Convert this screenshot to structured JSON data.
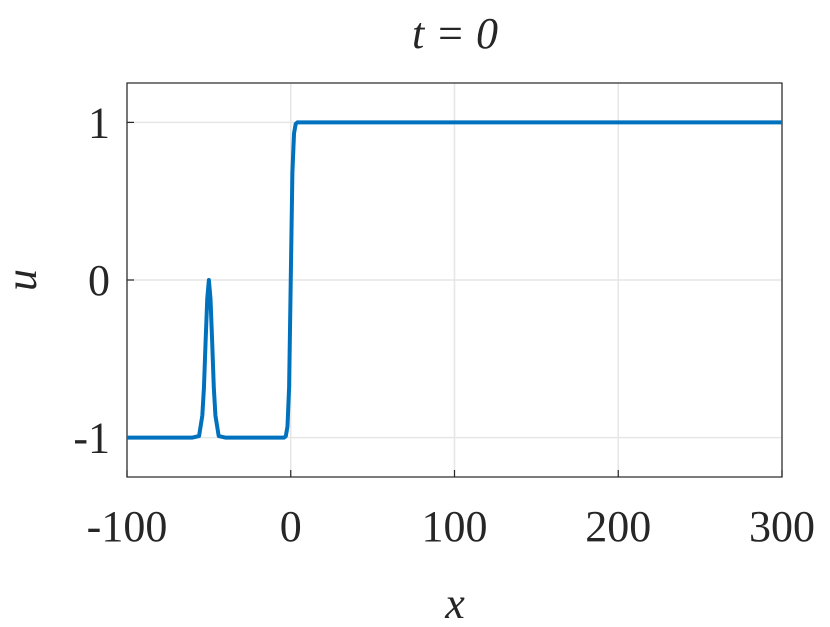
{
  "chart_data": {
    "type": "line",
    "title": "t = 0",
    "x_label": "x",
    "y_label": "u",
    "x": [
      -100,
      -60,
      -56,
      -54,
      -53,
      -52,
      -51,
      -50,
      -49,
      -48,
      -47,
      -46,
      -44,
      -40,
      -10,
      -6,
      -4,
      -3,
      -2,
      -1,
      0,
      1,
      2,
      3,
      4,
      6,
      10,
      300
    ],
    "series": [
      {
        "color": "#0072bd",
        "values": [
          -1,
          -1,
          -0.99,
          -0.86,
          -0.68,
          -0.39,
          -0.12,
          0,
          -0.12,
          -0.39,
          -0.68,
          -0.86,
          -0.99,
          -1,
          -1,
          -1,
          -1,
          -0.99,
          -0.93,
          -0.68,
          0,
          0.68,
          0.93,
          0.99,
          1,
          1,
          1,
          1
        ]
      }
    ],
    "xlim": [
      -100,
      300
    ],
    "xticks": [
      -100,
      0,
      100,
      200,
      300
    ],
    "ylim": [
      -1.25,
      1.25
    ],
    "yticks": [
      -1,
      0,
      1
    ],
    "grid": true
  }
}
